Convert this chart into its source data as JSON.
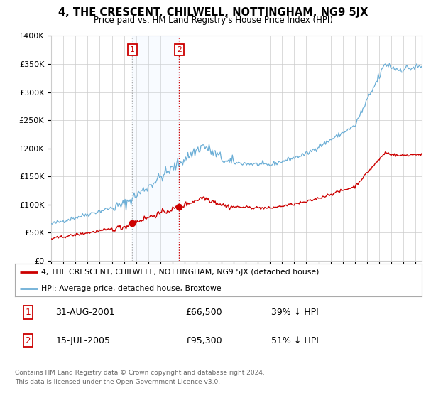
{
  "title": "4, THE CRESCENT, CHILWELL, NOTTINGHAM, NG9 5JX",
  "subtitle": "Price paid vs. HM Land Registry's House Price Index (HPI)",
  "ylabel_ticks": [
    "£0",
    "£50K",
    "£100K",
    "£150K",
    "£200K",
    "£250K",
    "£300K",
    "£350K",
    "£400K"
  ],
  "ylim": [
    0,
    400000
  ],
  "xlim_start": 1995.0,
  "xlim_end": 2025.5,
  "sale1_date": 2001.667,
  "sale1_price": 66500,
  "sale1_label": "1",
  "sale2_date": 2005.542,
  "sale2_price": 95300,
  "sale2_label": "2",
  "legend_line1": "4, THE CRESCENT, CHILWELL, NOTTINGHAM, NG9 5JX (detached house)",
  "legend_line2": "HPI: Average price, detached house, Broxtowe",
  "table_row1": [
    "1",
    "31-AUG-2001",
    "£66,500",
    "39% ↓ HPI"
  ],
  "table_row2": [
    "2",
    "15-JUL-2005",
    "£95,300",
    "51% ↓ HPI"
  ],
  "footnote1": "Contains HM Land Registry data © Crown copyright and database right 2024.",
  "footnote2": "This data is licensed under the Open Government Licence v3.0.",
  "sale_color": "#cc0000",
  "hpi_color": "#6baed6",
  "shade_color": "#ddeeff",
  "grid_color": "#cccccc",
  "background_color": "#ffffff"
}
